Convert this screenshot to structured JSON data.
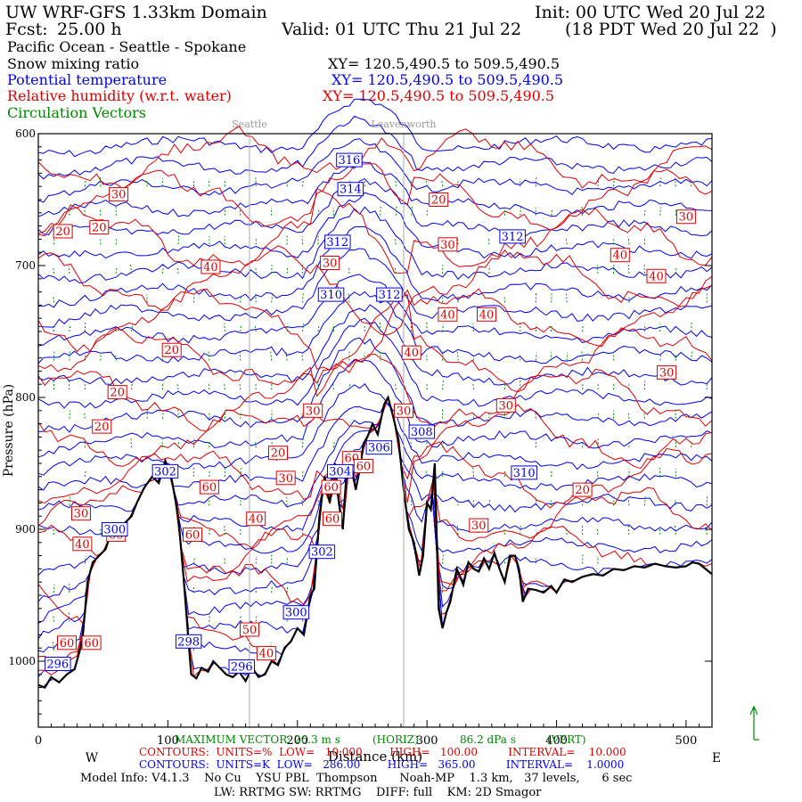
{
  "header": {
    "model_title": "UW WRF-GFS 1.33km Domain",
    "init": "Init: 00 UTC Wed 20 Jul 22",
    "fcst_label": "Fcst:",
    "fcst_value": "25.00 h",
    "valid": "Valid: 01 UTC Thu 21 Jul 22",
    "valid_local": "(18 PDT Wed 20 Jul 22  )",
    "region": "Pacific Ocean - Seattle - Spokane",
    "xy_black": "XY= 120.5,490.5 to 509.5,490.5",
    "xy_blue": "XY= 120.5,490.5 to 509.5,490.5",
    "xy_red": "XY= 120.5,490.5 to 509.5,490.5"
  },
  "legend": {
    "snow": "Snow mixing ratio",
    "theta": "Potential temperature",
    "rh": "Relative humidity (w.r.t. water)",
    "vectors": "Circulation Vectors"
  },
  "colors": {
    "theta": "#0000ee",
    "rh": "#dd0000",
    "vectors": "#008800",
    "terrain": "#000000"
  },
  "chart_data": {
    "type": "cross-section",
    "xlim": [
      0,
      520
    ],
    "ylim": [
      1050,
      600
    ],
    "xlabel": "Distance (km)",
    "ylabel": "Pressure (hPa)",
    "x_ticks": [
      "0",
      "100",
      "200",
      "300",
      "400",
      "500"
    ],
    "y_ticks": [
      "600",
      "700",
      "800",
      "900",
      "1000"
    ],
    "left_label": "W",
    "right_label": "E",
    "locations": [
      {
        "name": "Seattle",
        "x": 163
      },
      {
        "name": "Leavenworth",
        "x": 282
      }
    ],
    "terrain": [
      [
        0,
        1018
      ],
      [
        5,
        1020
      ],
      [
        10,
        1012
      ],
      [
        16,
        1016
      ],
      [
        22,
        1010
      ],
      [
        28,
        1006
      ],
      [
        34,
        985
      ],
      [
        38,
        940
      ],
      [
        42,
        925
      ],
      [
        47,
        920
      ],
      [
        52,
        915
      ],
      [
        57,
        900
      ],
      [
        62,
        905
      ],
      [
        67,
        895
      ],
      [
        72,
        890
      ],
      [
        76,
        880
      ],
      [
        82,
        868
      ],
      [
        88,
        860
      ],
      [
        93,
        865
      ],
      [
        98,
        848
      ],
      [
        103,
        862
      ],
      [
        108,
        890
      ],
      [
        112,
        935
      ],
      [
        116,
        985
      ],
      [
        118,
        1010
      ],
      [
        122,
        1013
      ],
      [
        126,
        1005
      ],
      [
        131,
        1008
      ],
      [
        135,
        1000
      ],
      [
        140,
        1005
      ],
      [
        145,
        1010
      ],
      [
        150,
        1012
      ],
      [
        155,
        1008
      ],
      [
        160,
        1015
      ],
      [
        165,
        1005
      ],
      [
        170,
        1012
      ],
      [
        175,
        1010
      ],
      [
        180,
        1000
      ],
      [
        185,
        1003
      ],
      [
        190,
        990
      ],
      [
        195,
        985
      ],
      [
        200,
        975
      ],
      [
        205,
        980
      ],
      [
        210,
        950
      ],
      [
        213,
        945
      ],
      [
        217,
        890
      ],
      [
        221,
        860
      ],
      [
        225,
        880
      ],
      [
        229,
        850
      ],
      [
        232,
        880
      ],
      [
        235,
        900
      ],
      [
        238,
        855
      ],
      [
        241,
        848
      ],
      [
        245,
        870
      ],
      [
        248,
        855
      ],
      [
        251,
        835
      ],
      [
        254,
        830
      ],
      [
        258,
        820
      ],
      [
        262,
        828
      ],
      [
        267,
        805
      ],
      [
        270,
        800
      ],
      [
        274,
        815
      ],
      [
        278,
        832
      ],
      [
        282,
        870
      ],
      [
        286,
        900
      ],
      [
        290,
        910
      ],
      [
        294,
        935
      ],
      [
        297,
        920
      ],
      [
        300,
        880
      ],
      [
        303,
        885
      ],
      [
        306,
        850
      ],
      [
        309,
        960
      ],
      [
        312,
        975
      ],
      [
        315,
        963
      ],
      [
        318,
        955
      ],
      [
        323,
        930
      ],
      [
        328,
        942
      ],
      [
        332,
        925
      ],
      [
        336,
        930
      ],
      [
        340,
        932
      ],
      [
        344,
        922
      ],
      [
        348,
        930
      ],
      [
        352,
        918
      ],
      [
        356,
        930
      ],
      [
        360,
        940
      ],
      [
        364,
        920
      ],
      [
        368,
        920
      ],
      [
        371,
        930
      ],
      [
        374,
        955
      ],
      [
        378,
        945
      ],
      [
        384,
        946
      ],
      [
        390,
        948
      ],
      [
        396,
        943
      ],
      [
        400,
        948
      ],
      [
        406,
        938
      ],
      [
        412,
        940
      ],
      [
        420,
        936
      ],
      [
        428,
        934
      ],
      [
        436,
        935
      ],
      [
        444,
        930
      ],
      [
        452,
        931
      ],
      [
        460,
        928
      ],
      [
        468,
        929
      ],
      [
        476,
        926
      ],
      [
        484,
        928
      ],
      [
        492,
        929
      ],
      [
        500,
        928
      ],
      [
        505,
        925
      ],
      [
        510,
        926
      ],
      [
        515,
        930
      ],
      [
        520,
        934
      ]
    ],
    "theta_labels": [
      {
        "v": "316",
        "x": 240,
        "p": 620
      },
      {
        "v": "314",
        "x": 241,
        "p": 642
      },
      {
        "v": "312",
        "x": 231,
        "p": 682
      },
      {
        "v": "312",
        "x": 366,
        "p": 678
      },
      {
        "v": "310",
        "x": 226,
        "p": 722
      },
      {
        "v": "312",
        "x": 271,
        "p": 722
      },
      {
        "v": "308",
        "x": 296,
        "p": 826
      },
      {
        "v": "306",
        "x": 263,
        "p": 838
      },
      {
        "v": "310",
        "x": 375,
        "p": 857
      },
      {
        "v": "302",
        "x": 98,
        "p": 856
      },
      {
        "v": "304",
        "x": 233,
        "p": 856
      },
      {
        "v": "300",
        "x": 59,
        "p": 900
      },
      {
        "v": "302",
        "x": 219,
        "p": 917
      },
      {
        "v": "300",
        "x": 199,
        "p": 963
      },
      {
        "v": "298",
        "x": 116,
        "p": 985
      },
      {
        "v": "296",
        "x": 157,
        "p": 1004
      },
      {
        "v": "296",
        "x": 15,
        "p": 1002
      }
    ],
    "rh_labels": [
      {
        "v": "30",
        "x": 62,
        "p": 646
      },
      {
        "v": "20",
        "x": 19,
        "p": 674
      },
      {
        "v": "20",
        "x": 47,
        "p": 671
      },
      {
        "v": "20",
        "x": 309,
        "p": 650
      },
      {
        "v": "30",
        "x": 500,
        "p": 663
      },
      {
        "v": "30",
        "x": 316,
        "p": 684
      },
      {
        "v": "40",
        "x": 449,
        "p": 692
      },
      {
        "v": "40",
        "x": 477,
        "p": 708
      },
      {
        "v": "40",
        "x": 133,
        "p": 701
      },
      {
        "v": "30",
        "x": 225,
        "p": 698
      },
      {
        "v": "40",
        "x": 316,
        "p": 737
      },
      {
        "v": "40",
        "x": 346,
        "p": 737
      },
      {
        "v": "20",
        "x": 103,
        "p": 764
      },
      {
        "v": "40",
        "x": 288,
        "p": 766
      },
      {
        "v": "30",
        "x": 485,
        "p": 781
      },
      {
        "v": "20",
        "x": 61,
        "p": 796
      },
      {
        "v": "30",
        "x": 212,
        "p": 810
      },
      {
        "v": "30",
        "x": 361,
        "p": 806
      },
      {
        "v": "30",
        "x": 282,
        "p": 810
      },
      {
        "v": "20",
        "x": 49,
        "p": 822
      },
      {
        "v": "20",
        "x": 185,
        "p": 842
      },
      {
        "v": "60",
        "x": 242,
        "p": 846
      },
      {
        "v": "30",
        "x": 191,
        "p": 861
      },
      {
        "v": "60",
        "x": 132,
        "p": 868
      },
      {
        "v": "60",
        "x": 226,
        "p": 868
      },
      {
        "v": "20",
        "x": 420,
        "p": 870
      },
      {
        "v": "60",
        "x": 251,
        "p": 852
      },
      {
        "v": "30",
        "x": 33,
        "p": 888
      },
      {
        "v": "40",
        "x": 34,
        "p": 911
      },
      {
        "v": "60",
        "x": 60,
        "p": 904
      },
      {
        "v": "60",
        "x": 119,
        "p": 904
      },
      {
        "v": "40",
        "x": 168,
        "p": 892
      },
      {
        "v": "60",
        "x": 227,
        "p": 892
      },
      {
        "v": "30",
        "x": 340,
        "p": 897
      },
      {
        "v": "50",
        "x": 163,
        "p": 976
      },
      {
        "v": "40",
        "x": 176,
        "p": 994
      },
      {
        "v": "60",
        "x": 41,
        "p": 986
      },
      {
        "v": "60",
        "x": 22,
        "p": 986
      }
    ]
  },
  "footer": {
    "max_vector_prefix": "MAXIMUM VECTOR:",
    "max_vector_h": "26.3 m s",
    "horiz": "(HORIZ)",
    "max_vector_v": "86.2 dPa s",
    "vert": "(VERT)",
    "rh_contours": "CONTOURS:  UNITS=%  LOW=   10.000        HIGH=   100.00         INTERVAL=    10.000",
    "theta_contours": "CONTOURS:  UNITS=K  LOW=   286.00        HIGH=   365.00         INTERVAL=    1.0000",
    "model_info": "Model Info: V4.1.3    No Cu    YSU PBL  Thompson      Noah-MP    1.3 km,   37 levels,      6 sec",
    "model_info2": "LW: RRTMG SW: RRTMG    DIFF: full    KM: 2D Smagor"
  }
}
